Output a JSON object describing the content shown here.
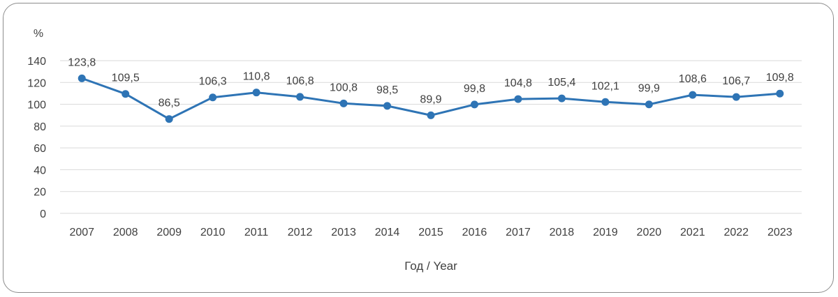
{
  "chart_data": {
    "type": "line",
    "ylabel": "%",
    "xlabel": "Год / Year",
    "ylim": [
      0,
      140
    ],
    "yticks": [
      "0",
      "20",
      "40",
      "60",
      "80",
      "100",
      "120",
      "140"
    ],
    "grid": true,
    "categories": [
      "2007",
      "2008",
      "2009",
      "2010",
      "2011",
      "2012",
      "2013",
      "2014",
      "2015",
      "2016",
      "2017",
      "2018",
      "2019",
      "2020",
      "2021",
      "2022",
      "2023"
    ],
    "series": [
      {
        "values": [
          123.8,
          109.5,
          86.5,
          106.3,
          110.8,
          106.8,
          100.8,
          98.5,
          89.9,
          99.8,
          104.8,
          105.4,
          102.1,
          99.9,
          108.6,
          106.7,
          109.8
        ],
        "labels": [
          "123,8",
          "109,5",
          "86,5",
          "106,3",
          "110,8",
          "106,8",
          "100,8",
          "98,5",
          "89,9",
          "99,8",
          "104,8",
          "105,4",
          "102,1",
          "99,9",
          "108,6",
          "106,7",
          "109,8"
        ]
      }
    ],
    "colors": {
      "line": "#2e74b5",
      "grid": "#d9d9d9"
    }
  }
}
